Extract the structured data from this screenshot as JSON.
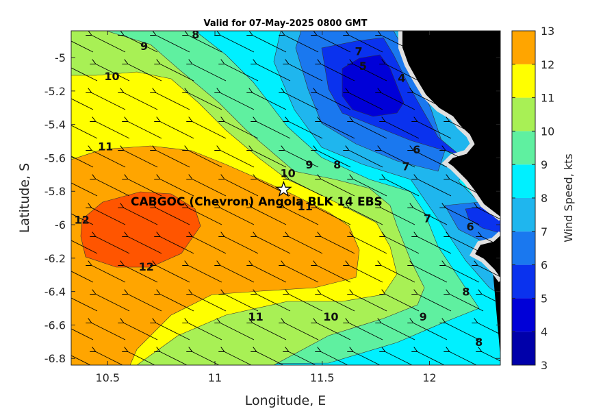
{
  "title": "Valid for 07-May-2025 0800 GMT",
  "site_label": "CABGOC (Chevron) Angola BLK 14  EBS",
  "colors": {
    "c3": "#0000aa",
    "c4": "#0000d8",
    "c5": "#0a32ee",
    "c6": "#1a78ef",
    "c7": "#1fb6ee",
    "c8": "#00f0ff",
    "c9": "#5ff0a0",
    "c10": "#a8f055",
    "c11": "#ffff00",
    "c12": "#ffa500",
    "c13": "#ff5500",
    "land": "#000000",
    "coastline_halo": "#dddddd"
  },
  "chart_data": {
    "type": "contour-map",
    "xlabel": "Longitude, E",
    "ylabel": "Latitude, S",
    "xlim": [
      10.33,
      12.33
    ],
    "ylim": [
      -6.84,
      -4.84
    ],
    "xticks": [
      "10.5",
      "11",
      "11.5",
      "12"
    ],
    "xtick_values": [
      10.5,
      11,
      11.5,
      12
    ],
    "yticks": [
      "-5",
      "-5.2",
      "-5.4",
      "-5.6",
      "-5.8",
      "-6",
      "-6.2",
      "-6.4",
      "-6.6",
      "-6.8"
    ],
    "ytick_values": [
      -5,
      -5.2,
      -5.4,
      -5.6,
      -5.8,
      -6,
      -6.2,
      -6.4,
      -6.6,
      -6.8
    ],
    "colorbar": {
      "label": "Wind Speed, kts",
      "ticks": [
        "3",
        "4",
        "5",
        "6",
        "7",
        "8",
        "9",
        "10",
        "11",
        "12",
        "13"
      ],
      "range": [
        3,
        13
      ]
    },
    "contour_labels": [
      {
        "text": "8",
        "lon": 10.91,
        "lat": -4.86
      },
      {
        "text": "9",
        "lon": 10.67,
        "lat": -4.93
      },
      {
        "text": "10",
        "lon": 10.52,
        "lat": -5.11
      },
      {
        "text": "11",
        "lon": 10.49,
        "lat": -5.53
      },
      {
        "text": "12",
        "lon": 10.38,
        "lat": -5.97
      },
      {
        "text": "12",
        "lon": 10.68,
        "lat": -6.25
      },
      {
        "text": "11",
        "lon": 11.19,
        "lat": -6.55
      },
      {
        "text": "10",
        "lon": 11.54,
        "lat": -6.55
      },
      {
        "text": "9",
        "lon": 11.97,
        "lat": -6.55
      },
      {
        "text": "8",
        "lon": 12.23,
        "lat": -6.7
      },
      {
        "text": "8",
        "lon": 12.17,
        "lat": -6.4
      },
      {
        "text": "7",
        "lon": 11.99,
        "lat": -5.96
      },
      {
        "text": "6",
        "lon": 12.19,
        "lat": -6.01
      },
      {
        "text": "10",
        "lon": 11.34,
        "lat": -5.69
      },
      {
        "text": "9",
        "lon": 11.44,
        "lat": -5.64
      },
      {
        "text": "8",
        "lon": 11.57,
        "lat": -5.64
      },
      {
        "text": "7",
        "lon": 11.89,
        "lat": -5.65
      },
      {
        "text": "6",
        "lon": 11.94,
        "lat": -5.55
      },
      {
        "text": "7",
        "lon": 11.67,
        "lat": -4.96
      },
      {
        "text": "5",
        "lon": 11.69,
        "lat": -5.05
      },
      {
        "text": "4",
        "lon": 11.87,
        "lat": -5.12
      },
      {
        "text": "11",
        "lon": 11.42,
        "lat": -5.89
      }
    ],
    "site": {
      "lon": 11.32,
      "lat": -5.79
    },
    "wind_direction_deg_to": 300
  }
}
